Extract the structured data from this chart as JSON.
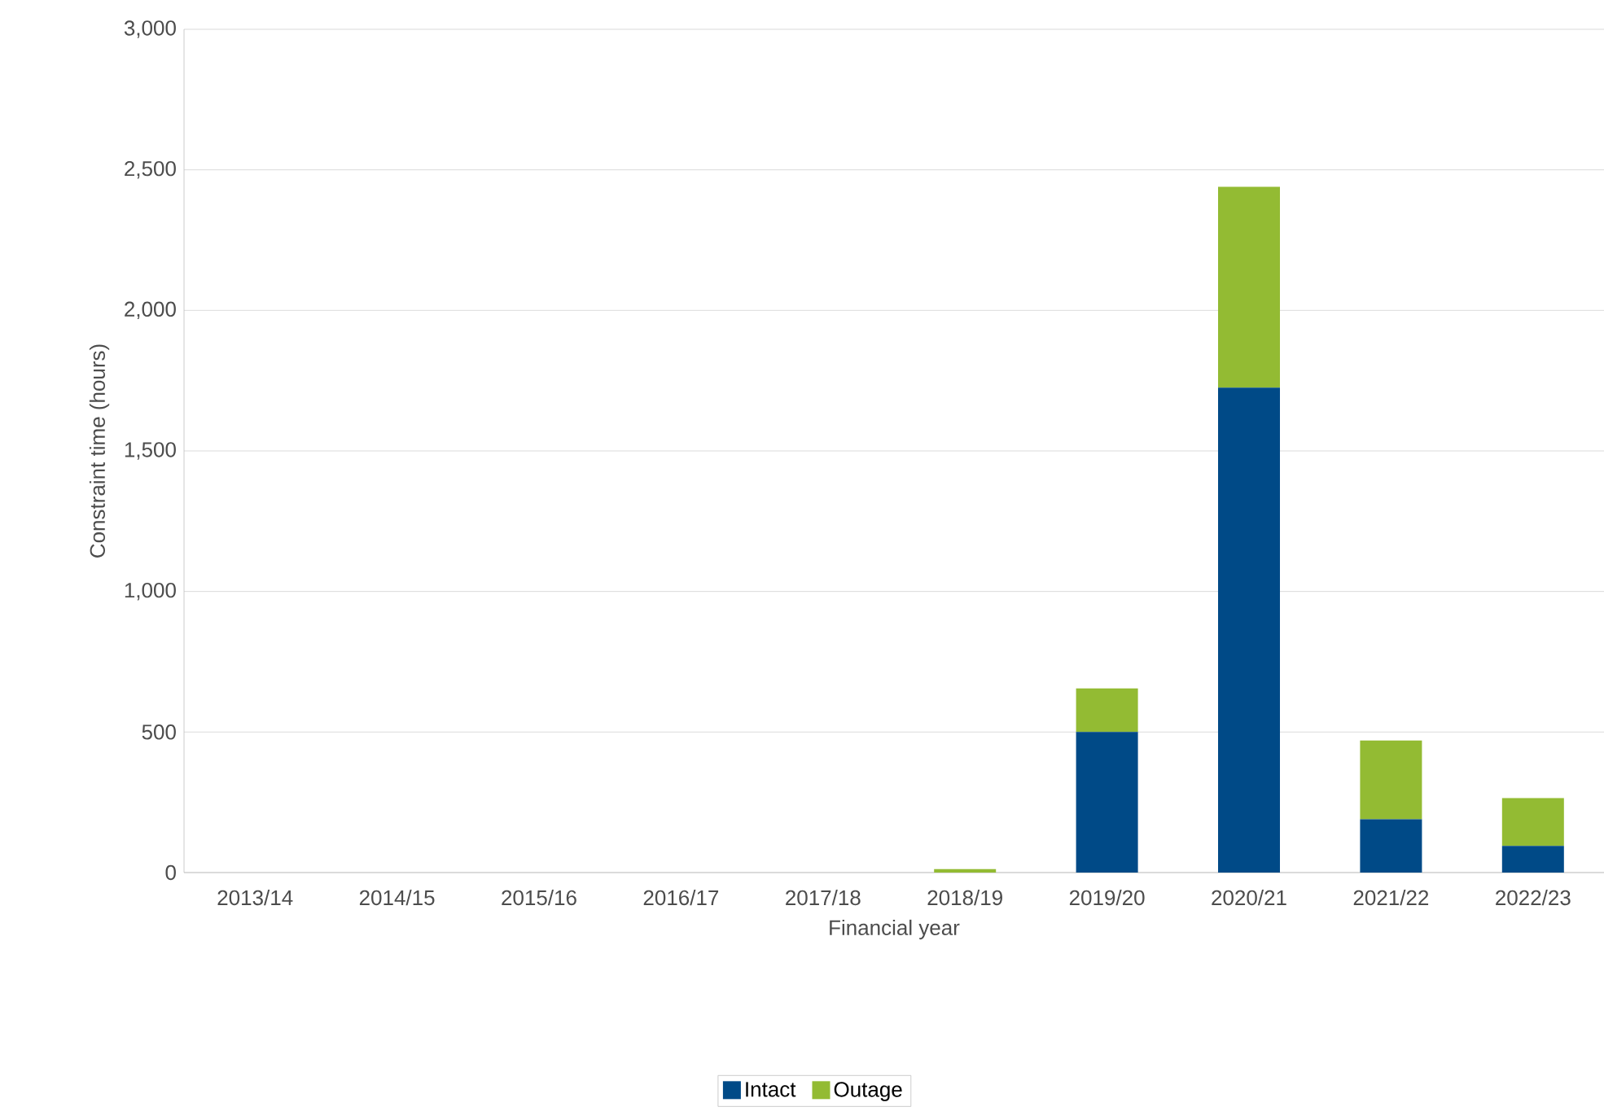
{
  "chart_data": {
    "type": "bar",
    "stacked": true,
    "xlabel": "Financial year",
    "ylabel": "Constraint time (hours)",
    "categories": [
      "2013/14",
      "2014/15",
      "2015/16",
      "2016/17",
      "2017/18",
      "2018/19",
      "2019/20",
      "2020/21",
      "2021/22",
      "2022/23"
    ],
    "series": [
      {
        "name": "Intact",
        "color": "#004a87",
        "values": [
          0,
          0,
          0,
          0,
          0,
          0,
          500,
          1725,
          190,
          95
        ]
      },
      {
        "name": "Outage",
        "color": "#93bb33",
        "values": [
          0,
          0,
          0,
          0,
          0,
          12,
          155,
          715,
          280,
          170
        ]
      }
    ],
    "ylim": [
      0,
      3000
    ],
    "yticks": [
      {
        "value": 0,
        "label": "0"
      },
      {
        "value": 500,
        "label": "500"
      },
      {
        "value": 1000,
        "label": "1,000"
      },
      {
        "value": 1500,
        "label": "1,500"
      },
      {
        "value": 2000,
        "label": "2,000"
      },
      {
        "value": 2500,
        "label": "2,500"
      },
      {
        "value": 3000,
        "label": "3,000"
      }
    ],
    "grid": "y",
    "legend": "bottom"
  }
}
